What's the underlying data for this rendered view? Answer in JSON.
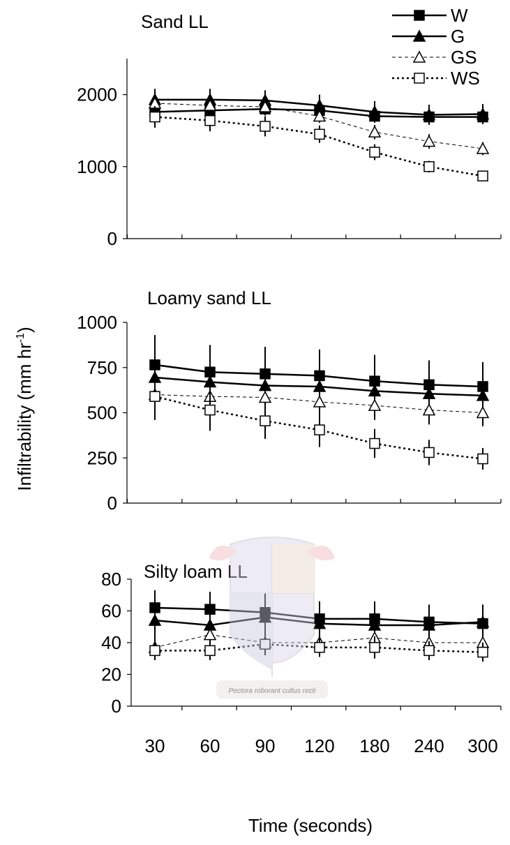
{
  "chart_data": [
    {
      "type": "line",
      "title": "Sand LL",
      "ylim": [
        0,
        2500
      ],
      "yticks": [
        0,
        1000,
        2000
      ],
      "series": [
        {
          "name": "W",
          "values": [
            1760,
            1780,
            1800,
            1780,
            1700,
            1690,
            1690
          ],
          "errors": [
            90,
            90,
            90,
            90,
            90,
            80,
            80
          ]
        },
        {
          "name": "G",
          "values": [
            1930,
            1930,
            1920,
            1850,
            1760,
            1720,
            1730
          ],
          "errors": [
            150,
            150,
            140,
            150,
            150,
            140,
            140
          ]
        },
        {
          "name": "GS",
          "values": [
            1880,
            1850,
            1830,
            1700,
            1480,
            1350,
            1250
          ],
          "errors": [
            80,
            80,
            80,
            90,
            100,
            100,
            90
          ]
        },
        {
          "name": "WS",
          "values": [
            1690,
            1640,
            1560,
            1450,
            1200,
            1000,
            870
          ],
          "errors": [
            150,
            150,
            140,
            120,
            110,
            80,
            70
          ]
        }
      ]
    },
    {
      "type": "line",
      "title": "Loamy sand LL",
      "ylim": [
        0,
        1000
      ],
      "yticks": [
        0,
        250,
        500,
        750,
        1000
      ],
      "series": [
        {
          "name": "W",
          "values": [
            765,
            725,
            715,
            705,
            675,
            655,
            645
          ],
          "errors": [
            165,
            150,
            150,
            145,
            145,
            135,
            135
          ]
        },
        {
          "name": "G",
          "values": [
            695,
            670,
            650,
            645,
            620,
            605,
            595
          ],
          "errors": [
            145,
            135,
            140,
            130,
            130,
            125,
            120
          ]
        },
        {
          "name": "GS",
          "values": [
            600,
            590,
            585,
            560,
            540,
            515,
            500
          ],
          "errors": [
            75,
            75,
            70,
            70,
            80,
            80,
            75
          ]
        },
        {
          "name": "WS",
          "values": [
            590,
            515,
            455,
            405,
            330,
            280,
            245
          ],
          "errors": [
            130,
            115,
            100,
            95,
            80,
            70,
            60
          ]
        }
      ]
    },
    {
      "type": "line",
      "title": "Silty loam LL",
      "ylim": [
        0,
        80
      ],
      "yticks": [
        0,
        20,
        40,
        60,
        80
      ],
      "series": [
        {
          "name": "W",
          "values": [
            62,
            61,
            59,
            55,
            55,
            53,
            52
          ],
          "errors": [
            11,
            11,
            11,
            11,
            11,
            11,
            12
          ]
        },
        {
          "name": "G",
          "values": [
            54,
            51,
            56,
            52,
            51,
            51,
            53
          ],
          "errors": [
            19,
            21,
            15,
            14,
            9,
            9,
            9
          ]
        },
        {
          "name": "GS",
          "values": [
            37,
            45,
            40,
            40,
            43,
            40,
            40
          ],
          "errors": [
            8,
            8,
            8,
            8,
            8,
            8,
            7
          ]
        },
        {
          "name": "WS",
          "values": [
            35,
            35,
            39,
            37,
            37,
            35,
            34
          ],
          "errors": [
            6,
            6,
            6,
            6,
            7,
            6,
            6
          ]
        }
      ]
    }
  ],
  "shared": {
    "categories": [
      "30",
      "60",
      "90",
      "120",
      "180",
      "240",
      "300"
    ],
    "xlabel": "Time (seconds)",
    "ylabel_main": "Infiltrability (mm hr",
    "ylabel_sup": "-1",
    "ylabel_close": ")",
    "legend": [
      "W",
      "G",
      "GS",
      "WS"
    ],
    "watermark_motto": "Pectora roborant cultus recti"
  }
}
